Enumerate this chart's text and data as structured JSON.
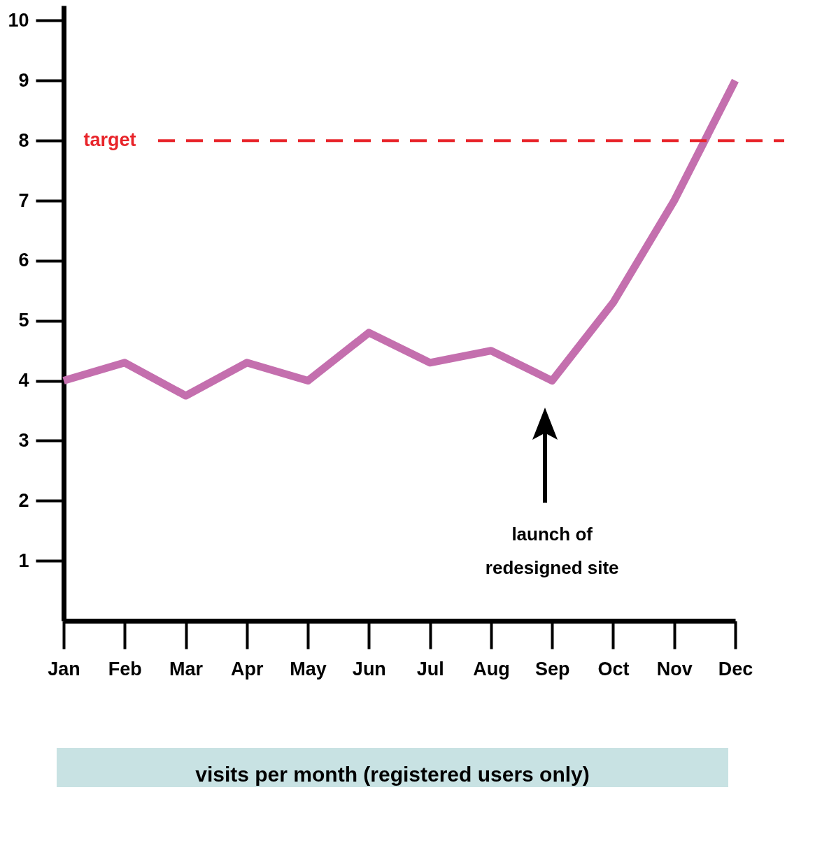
{
  "chart_data": {
    "type": "line",
    "xlabel": "visits per month (registered users only)",
    "categories": [
      "Jan",
      "Feb",
      "Mar",
      "Apr",
      "May",
      "Jun",
      "Jul",
      "Aug",
      "Sep",
      "Oct",
      "Nov",
      "Dec"
    ],
    "series": [
      {
        "color": "#c46fae",
        "values": [
          4.0,
          4.3,
          3.75,
          4.3,
          4.0,
          4.8,
          4.3,
          4.5,
          4.0,
          5.3,
          7.0,
          9.0
        ]
      }
    ],
    "ylim": [
      0,
      10.25
    ],
    "yticks": [
      1,
      2,
      3,
      4,
      5,
      6,
      7,
      8,
      9,
      10
    ],
    "grid": false,
    "marker": "none",
    "line_style": "solid",
    "ref_lines": [
      {
        "axis": "y",
        "value": 8,
        "label": "target",
        "color": "#e8242a",
        "line_style": "dashed"
      }
    ],
    "annotations": [
      "launch of\nredesigned site"
    ]
  }
}
